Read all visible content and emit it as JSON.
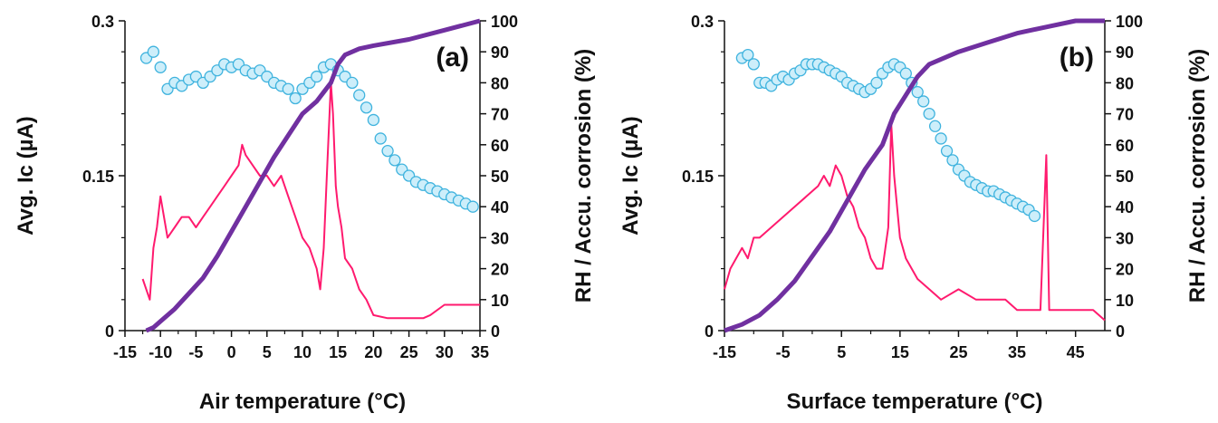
{
  "colors": {
    "ic_line": "#ff1a6e",
    "rh_marker_fill": "#cdeefa",
    "rh_marker_stroke": "#3fb3de",
    "accu_line": "#7030a0",
    "axis": "#111111"
  },
  "chart_data": [
    {
      "type": "line",
      "panel_label": "(a)",
      "xlabel": "Air temperature (°C)",
      "ylabel_left": "Avg. Ic (µA)",
      "ylabel_right": "RH / Accu. corrosion (%)",
      "xlim": [
        -15,
        35
      ],
      "ylim_left": [
        0,
        0.3
      ],
      "ylim_right": [
        0,
        100
      ],
      "x_ticks": [
        "-15",
        "-10",
        "-5",
        "0",
        "5",
        "10",
        "15",
        "20",
        "25",
        "30",
        "35"
      ],
      "y_left_ticks": [
        "0",
        "0.15",
        "0.3"
      ],
      "y_right_ticks": [
        "0",
        "10",
        "20",
        "30",
        "40",
        "50",
        "60",
        "70",
        "80",
        "90",
        "100"
      ],
      "series": [
        {
          "key": "ic",
          "style": "line",
          "axis": "left",
          "x": [
            -12.5,
            -12,
            -11.5,
            -11,
            -10.5,
            -10,
            -9,
            -8,
            -7,
            -6,
            -5,
            -4,
            -3,
            -2,
            -1,
            0,
            1,
            1.5,
            2,
            3,
            4,
            5,
            6,
            7,
            8,
            9,
            10,
            11,
            12,
            12.5,
            13,
            13.5,
            14,
            14.3,
            14.7,
            15,
            15.5,
            16,
            17,
            18,
            19,
            20,
            22,
            25,
            27,
            28,
            30,
            32,
            33,
            34,
            35
          ],
          "y": [
            0.05,
            0.04,
            0.03,
            0.08,
            0.1,
            0.13,
            0.09,
            0.1,
            0.11,
            0.11,
            0.1,
            0.11,
            0.12,
            0.13,
            0.14,
            0.15,
            0.16,
            0.18,
            0.17,
            0.16,
            0.15,
            0.15,
            0.14,
            0.15,
            0.13,
            0.11,
            0.09,
            0.08,
            0.06,
            0.04,
            0.08,
            0.16,
            0.24,
            0.21,
            0.14,
            0.12,
            0.1,
            0.07,
            0.06,
            0.04,
            0.03,
            0.015,
            0.012,
            0.012,
            0.012,
            0.015,
            0.025,
            0.025,
            0.025,
            0.025,
            0.025
          ]
        },
        {
          "key": "rh",
          "style": "scatter",
          "axis": "right",
          "x": [
            -12,
            -11,
            -10,
            -9,
            -8,
            -7,
            -6,
            -5,
            -4,
            -3,
            -2,
            -1,
            0,
            1,
            2,
            3,
            4,
            5,
            6,
            7,
            8,
            9,
            10,
            11,
            12,
            13,
            14,
            15,
            16,
            17,
            18,
            19,
            20,
            21,
            22,
            23,
            24,
            25,
            26,
            27,
            28,
            29,
            30,
            31,
            32,
            33,
            34
          ],
          "y": [
            88,
            90,
            85,
            78,
            80,
            79,
            81,
            82,
            80,
            82,
            84,
            86,
            85,
            86,
            84,
            83,
            84,
            82,
            80,
            79,
            78,
            75,
            78,
            80,
            82,
            85,
            86,
            84,
            82,
            80,
            76,
            72,
            68,
            62,
            58,
            55,
            52,
            50,
            48,
            47,
            46,
            45,
            44,
            43,
            42,
            41,
            40
          ]
        },
        {
          "key": "accu",
          "style": "line",
          "axis": "right",
          "x": [
            -12,
            -11,
            -10,
            -8,
            -6,
            -4,
            -2,
            0,
            2,
            4,
            6,
            8,
            10,
            12,
            13,
            14,
            15,
            16,
            18,
            20,
            25,
            30,
            35
          ],
          "y": [
            0,
            1,
            3,
            7,
            12,
            17,
            24,
            32,
            40,
            48,
            56,
            63,
            70,
            74,
            77,
            80,
            86,
            89,
            91,
            92,
            94,
            97,
            100
          ]
        }
      ]
    },
    {
      "type": "line",
      "panel_label": "(b)",
      "xlabel": "Surface temperature (°C)",
      "ylabel_left": "Avg. Ic (µA)",
      "ylabel_right": "RH / Accu. corrosion (%)",
      "xlim": [
        -15,
        50
      ],
      "ylim_left": [
        0,
        0.3
      ],
      "ylim_right": [
        0,
        100
      ],
      "x_ticks": [
        "-15",
        "-5",
        "5",
        "15",
        "25",
        "35",
        "45"
      ],
      "y_left_ticks": [
        "0",
        "0.15",
        "0.3"
      ],
      "y_right_ticks": [
        "0",
        "10",
        "20",
        "30",
        "40",
        "50",
        "60",
        "70",
        "80",
        "90",
        "100"
      ],
      "series": [
        {
          "key": "ic",
          "style": "line",
          "axis": "left",
          "x": [
            -15,
            -14,
            -13,
            -12,
            -11,
            -10,
            -9,
            -7,
            -5,
            -3,
            -1,
            1,
            2,
            3,
            4,
            5,
            6,
            7,
            8,
            9,
            10,
            11,
            12,
            13,
            13.5,
            14,
            15,
            16,
            18,
            20,
            22,
            25,
            28,
            30,
            33,
            35,
            37,
            39,
            40,
            40.5,
            41,
            45,
            48,
            50
          ],
          "y": [
            0.04,
            0.06,
            0.07,
            0.08,
            0.07,
            0.09,
            0.09,
            0.1,
            0.11,
            0.12,
            0.13,
            0.14,
            0.15,
            0.14,
            0.16,
            0.15,
            0.13,
            0.12,
            0.1,
            0.09,
            0.07,
            0.06,
            0.06,
            0.1,
            0.2,
            0.15,
            0.09,
            0.07,
            0.05,
            0.04,
            0.03,
            0.04,
            0.03,
            0.03,
            0.03,
            0.02,
            0.02,
            0.02,
            0.17,
            0.02,
            0.02,
            0.02,
            0.02,
            0.01
          ]
        },
        {
          "key": "rh",
          "style": "scatter",
          "axis": "right",
          "x": [
            -12,
            -11,
            -10,
            -9,
            -8,
            -7,
            -6,
            -5,
            -4,
            -3,
            -2,
            -1,
            0,
            1,
            2,
            3,
            4,
            5,
            6,
            7,
            8,
            9,
            10,
            11,
            12,
            13,
            14,
            15,
            16,
            17,
            18,
            19,
            20,
            21,
            22,
            23,
            24,
            25,
            26,
            27,
            28,
            29,
            30,
            31,
            32,
            33,
            34,
            35,
            36,
            37,
            38
          ],
          "y": [
            88,
            89,
            86,
            80,
            80,
            79,
            81,
            82,
            81,
            83,
            84,
            86,
            86,
            86,
            85,
            84,
            83,
            82,
            80,
            79,
            78,
            77,
            78,
            80,
            83,
            85,
            86,
            85,
            83,
            80,
            77,
            74,
            70,
            66,
            62,
            58,
            55,
            52,
            50,
            48,
            47,
            46,
            45,
            45,
            44,
            43,
            42,
            41,
            40,
            39,
            37
          ]
        },
        {
          "key": "accu",
          "style": "line",
          "axis": "right",
          "x": [
            -15,
            -12,
            -9,
            -6,
            -3,
            0,
            3,
            6,
            9,
            12,
            14,
            16,
            18,
            20,
            25,
            30,
            35,
            40,
            45,
            47,
            50
          ],
          "y": [
            0,
            2,
            5,
            10,
            16,
            24,
            32,
            42,
            52,
            60,
            70,
            76,
            82,
            86,
            90,
            93,
            96,
            98,
            100,
            100,
            100
          ]
        }
      ]
    }
  ]
}
